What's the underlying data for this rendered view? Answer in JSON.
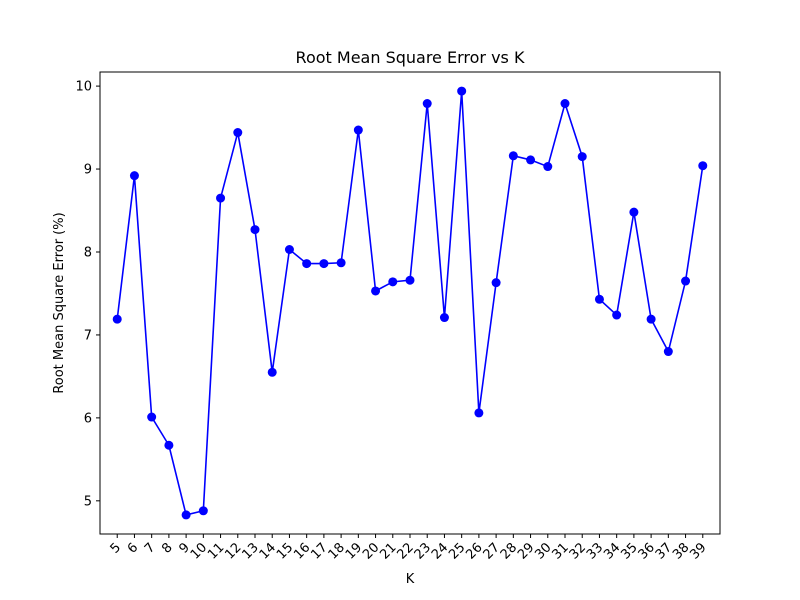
{
  "chart_data": {
    "type": "line",
    "title": "Root Mean Square Error vs K",
    "xlabel": "K",
    "ylabel": "Root Mean Square Error (%)",
    "x": [
      5,
      6,
      7,
      8,
      9,
      10,
      11,
      12,
      13,
      14,
      15,
      16,
      17,
      18,
      19,
      20,
      21,
      22,
      23,
      24,
      25,
      26,
      27,
      28,
      29,
      30,
      31,
      32,
      33,
      34,
      35,
      36,
      37,
      38,
      39
    ],
    "series": [
      {
        "values": [
          7.19,
          8.92,
          6.01,
          5.67,
          4.83,
          4.88,
          8.65,
          9.44,
          8.27,
          6.55,
          8.03,
          7.86,
          7.86,
          7.87,
          9.47,
          7.53,
          7.64,
          7.66,
          9.79,
          7.21,
          9.94,
          6.06,
          7.63,
          9.16,
          9.11,
          9.03,
          9.79,
          9.15,
          7.43,
          7.24,
          8.48,
          7.19,
          6.8,
          7.65,
          9.04
        ]
      }
    ],
    "xlim": [
      4,
      40
    ],
    "ylim": [
      4.6,
      10.17
    ],
    "yticks": [
      5,
      6,
      7,
      8,
      9,
      10
    ],
    "grid": false,
    "line_color": "#0000ff",
    "marker_color": "#0000ff"
  }
}
